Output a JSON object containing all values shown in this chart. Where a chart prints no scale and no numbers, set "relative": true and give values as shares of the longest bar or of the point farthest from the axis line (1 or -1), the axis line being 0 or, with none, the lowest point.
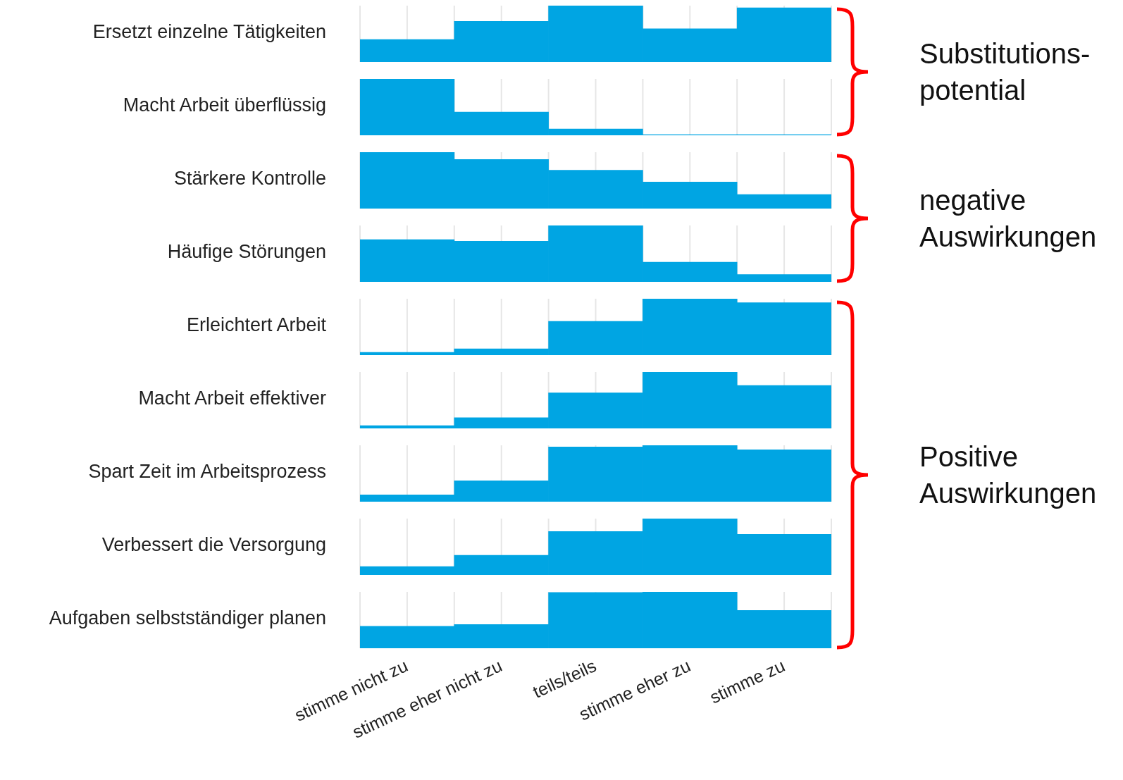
{
  "chart_data": [
    {
      "type": "bar",
      "ylabel": "Ersetzt einzelne Tätigkeiten",
      "values": [
        0.4,
        0.72,
        1,
        0.59,
        0.96
      ],
      "color": "#00a5e3",
      "relative": true,
      "grid": "x",
      "annotations": [
        "Substitutions-\npotential"
      ]
    },
    {
      "type": "bar",
      "ylabel": "Macht Arbeit überflüssig",
      "values": [
        1,
        0.41,
        0.11,
        0.01,
        0.01
      ],
      "color": "#00a5e3",
      "relative": true,
      "grid": "x"
    },
    {
      "type": "bar",
      "ylabel": "Stärkere Kontrolle",
      "values": [
        1,
        0.87,
        0.68,
        0.47,
        0.25
      ],
      "color": "#00a5e3",
      "relative": true,
      "grid": "x",
      "annotations": [
        "negative\nAuswirkungen"
      ]
    },
    {
      "type": "bar",
      "ylabel": "Häufige Störungen",
      "values": [
        0.75,
        0.72,
        1,
        0.35,
        0.13
      ],
      "color": "#00a5e3",
      "relative": true,
      "grid": "x"
    },
    {
      "type": "bar",
      "ylabel": "Erleichtert Arbeit",
      "values": [
        0.05,
        0.11,
        0.6,
        1,
        0.93
      ],
      "color": "#00a5e3",
      "relative": true,
      "grid": "x",
      "annotations": [
        "Positive\nAuswirkungen"
      ]
    },
    {
      "type": "bar",
      "ylabel": "Macht Arbeit effektiver",
      "values": [
        0.05,
        0.19,
        0.63,
        1,
        0.76
      ],
      "color": "#00a5e3",
      "relative": true,
      "grid": "x"
    },
    {
      "type": "bar",
      "ylabel": "Spart Zeit im Arbeitsprozess",
      "values": [
        0.12,
        0.37,
        0.97,
        1,
        0.92
      ],
      "color": "#00a5e3",
      "relative": true,
      "grid": "x"
    },
    {
      "type": "bar",
      "ylabel": "Verbessert die Versorgung",
      "values": [
        0.15,
        0.35,
        0.77,
        1,
        0.72
      ],
      "color": "#00a5e3",
      "relative": true,
      "grid": "x"
    },
    {
      "type": "bar",
      "ylabel": "Aufgaben selbstständiger planen",
      "categories": [
        "stimme nicht zu",
        "stimme eher nicht zu",
        "teils/teils",
        "stimme eher zu",
        "stimme zu"
      ],
      "values": [
        0.39,
        0.42,
        0.99,
        1,
        0.67
      ],
      "color": "#00a5e3",
      "relative": true,
      "grid": "x"
    }
  ]
}
